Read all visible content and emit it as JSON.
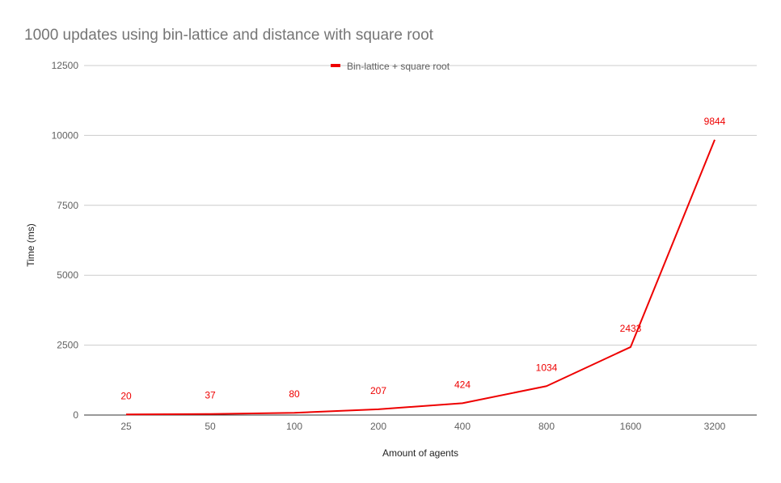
{
  "chart_data": {
    "type": "line",
    "title": "1000 updates using bin-lattice and distance with square root",
    "xlabel": "Amount of agents",
    "ylabel": "Time (ms)",
    "categories": [
      "25",
      "50",
      "100",
      "200",
      "400",
      "800",
      "1600",
      "3200"
    ],
    "series": [
      {
        "name": "Bin-lattice + square root",
        "color": "#ee0000",
        "values": [
          20,
          37,
          80,
          207,
          424,
          1034,
          2433,
          9844
        ]
      }
    ],
    "ylim": [
      0,
      12500
    ],
    "yticks": [
      "0",
      "2500",
      "5000",
      "7500",
      "10000",
      "12500"
    ],
    "ytick_values": [
      0,
      2500,
      5000,
      7500,
      10000,
      12500
    ],
    "grid": true,
    "legend_position": "top-center",
    "data_labels": true
  }
}
